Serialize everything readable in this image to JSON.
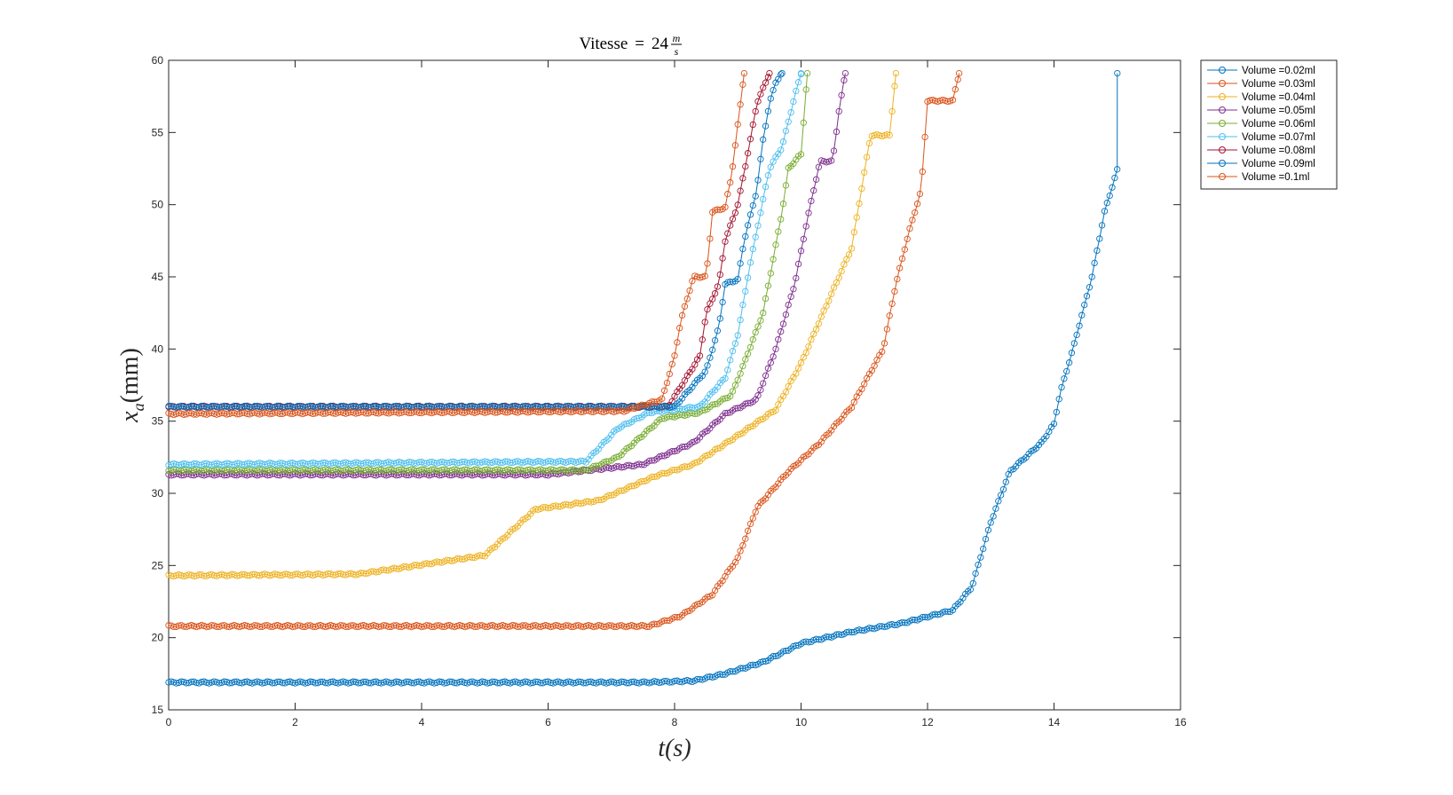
{
  "chart_data": {
    "type": "line",
    "title": "Vitesse = 24 m/s",
    "title_parts": {
      "prefix": "Vitesse",
      "eq": "=",
      "num": "24",
      "frac_num": "m",
      "frac_den": "s"
    },
    "xlabel": "t(s)",
    "ylabel": "x_a(mm)",
    "ylabel_parts": {
      "var": "x",
      "sub": "a",
      "paren": "(mm)"
    },
    "xlim": [
      0,
      16
    ],
    "ylim": [
      15,
      60
    ],
    "xticks": [
      0,
      2,
      4,
      6,
      8,
      10,
      12,
      14,
      16
    ],
    "yticks": [
      15,
      20,
      25,
      30,
      35,
      40,
      45,
      50,
      55,
      60
    ],
    "grid": false,
    "legend_position": "outside-top-right",
    "marker": "circle-open",
    "sample_dt": 0.04,
    "series": [
      {
        "name": "Volume =0.02ml",
        "color": "#0072BD",
        "x": [
          0,
          7.5,
          8.3,
          8.8,
          9.4,
          10.0,
          10.8,
          11.6,
          12.4,
          12.7,
          13.0,
          13.3,
          13.8,
          14.0,
          14.1,
          14.3,
          14.6,
          14.8,
          15.0,
          15.0
        ],
        "y": [
          16.9,
          16.9,
          17.0,
          17.5,
          18.3,
          19.6,
          20.4,
          21.0,
          21.9,
          23.5,
          28.0,
          31.5,
          33.5,
          34.8,
          37.0,
          40.0,
          45.0,
          49.5,
          52.4,
          59.1
        ]
      },
      {
        "name": "Volume =0.03ml",
        "color": "#D95319",
        "x": [
          0,
          7.6,
          8.1,
          8.6,
          9.0,
          9.3,
          9.6,
          9.8,
          10.3,
          10.8,
          11.3,
          11.5,
          11.7,
          11.9,
          12.0,
          12.4,
          12.5
        ],
        "y": [
          20.8,
          20.8,
          21.5,
          23.0,
          25.5,
          29.0,
          30.5,
          31.5,
          33.5,
          36.0,
          40.0,
          44.5,
          48.0,
          51.0,
          57.2,
          57.2,
          59.1
        ]
      },
      {
        "name": "Volume =0.04ml",
        "color": "#EDB120",
        "x": [
          0,
          3.0,
          5.0,
          5.8,
          6.8,
          7.7,
          8.3,
          9.0,
          9.6,
          10.0,
          10.3,
          10.8,
          11.1,
          11.4,
          11.5
        ],
        "y": [
          24.3,
          24.4,
          25.7,
          28.9,
          29.5,
          31.2,
          32.0,
          34.0,
          35.8,
          39.0,
          42.0,
          47.0,
          54.8,
          54.8,
          59.1
        ]
      },
      {
        "name": "Volume =0.05ml",
        "color": "#7E2F8E",
        "x": [
          0,
          6.0,
          7.5,
          8.3,
          8.8,
          9.3,
          9.6,
          9.9,
          10.1,
          10.3,
          10.5,
          10.6,
          10.7
        ],
        "y": [
          31.3,
          31.3,
          32.0,
          33.5,
          35.5,
          36.5,
          40.0,
          44.5,
          49.0,
          53.0,
          53.0,
          56.5,
          59.1
        ]
      },
      {
        "name": "Volume =0.06ml",
        "color": "#77AC30",
        "x": [
          0,
          6.6,
          7.1,
          7.8,
          8.4,
          8.9,
          9.1,
          9.4,
          9.7,
          9.8,
          10.0,
          10.1
        ],
        "y": [
          31.6,
          31.6,
          32.5,
          35.2,
          35.6,
          36.8,
          39.0,
          42.5,
          49.5,
          52.5,
          53.5,
          59.1
        ]
      },
      {
        "name": "Volume =0.07ml",
        "color": "#4DBEEE",
        "x": [
          0,
          6.6,
          7.1,
          7.6,
          8.4,
          8.8,
          9.0,
          9.2,
          9.5,
          9.7,
          9.9,
          10.0
        ],
        "y": [
          32.0,
          32.2,
          34.5,
          35.6,
          36.0,
          38.0,
          41.0,
          46.0,
          52.5,
          54.0,
          57.5,
          59.1
        ]
      },
      {
        "name": "Volume =0.08ml",
        "color": "#A2142F",
        "x": [
          0,
          7.9,
          8.4,
          8.5,
          8.7,
          8.8,
          9.0,
          9.2,
          9.3,
          9.5
        ],
        "y": [
          36.0,
          36.0,
          39.5,
          42.5,
          44.5,
          47.5,
          50.0,
          54.5,
          57.0,
          59.1
        ]
      },
      {
        "name": "Volume =0.09ml",
        "color": "#0072BD",
        "x": [
          0,
          8.0,
          8.5,
          8.7,
          8.8,
          9.0,
          9.1,
          9.3,
          9.4,
          9.5,
          9.6,
          9.7
        ],
        "y": [
          36.0,
          36.0,
          38.5,
          41.5,
          44.5,
          44.8,
          47.5,
          51.0,
          54.5,
          57.0,
          58.5,
          59.1
        ]
      },
      {
        "name": "Volume =0.1ml",
        "color": "#D95319",
        "x": [
          0,
          7.2,
          7.8,
          8.0,
          8.1,
          8.3,
          8.5,
          8.6,
          8.8,
          8.9,
          9.0,
          9.1
        ],
        "y": [
          35.5,
          35.7,
          36.5,
          39.5,
          42.0,
          45.0,
          45.0,
          49.5,
          49.8,
          52.0,
          55.5,
          59.1
        ]
      }
    ]
  }
}
